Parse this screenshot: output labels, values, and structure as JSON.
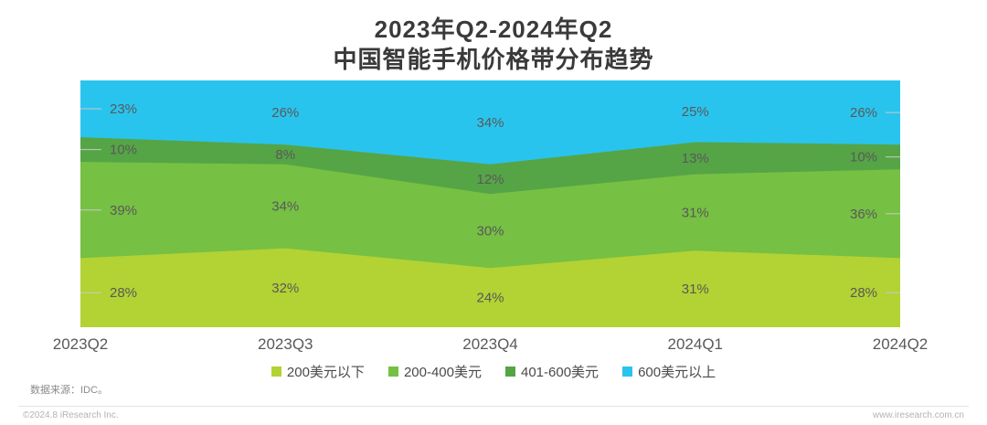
{
  "title": {
    "line1": "2023年Q2-2024年Q2",
    "line2": "中国智能手机价格带分布趋势"
  },
  "chart_data": {
    "type": "area",
    "stacked": true,
    "percent_stacked": true,
    "unit": "%",
    "title": "2023年Q2-2024年Q2 中国智能手机价格带分布趋势",
    "categories": [
      "2023Q2",
      "2023Q3",
      "2023Q4",
      "2024Q1",
      "2024Q2"
    ],
    "series": [
      {
        "name": "200美元以下",
        "color": "#b3d233",
        "values": [
          28,
          32,
          24,
          31,
          28
        ]
      },
      {
        "name": "200-400美元",
        "color": "#76c044",
        "values": [
          39,
          34,
          30,
          31,
          36
        ]
      },
      {
        "name": "401-600美元",
        "color": "#55a546",
        "values": [
          10,
          8,
          12,
          13,
          10
        ]
      },
      {
        "name": "600美元以上",
        "color": "#29c4ee",
        "values": [
          23,
          26,
          34,
          25,
          26
        ]
      }
    ],
    "ylim": [
      0,
      100
    ],
    "grid": false,
    "data_labels": true,
    "legend_position": "bottom",
    "leader_line_color": "#c9c9c9"
  },
  "footer": {
    "source": "数据来源：IDC。",
    "copyright": "©2024.8 iResearch Inc.",
    "website": "www.iresearch.com.cn"
  }
}
